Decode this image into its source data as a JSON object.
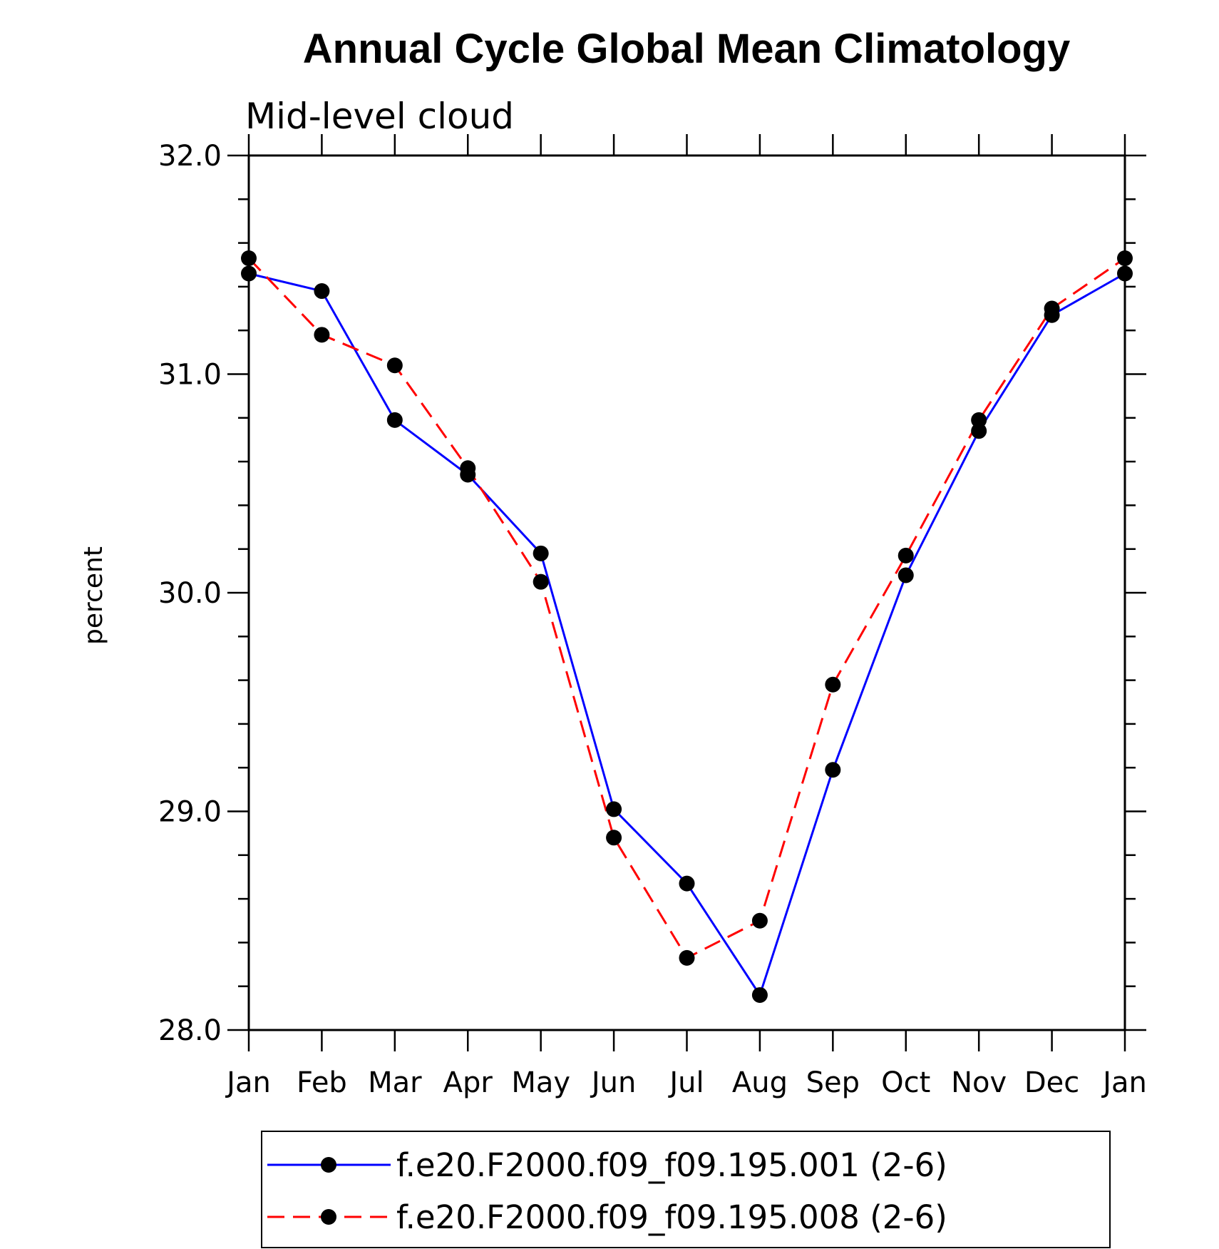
{
  "chart_data": {
    "type": "line",
    "title": "Annual Cycle Global Mean Climatology",
    "subtitle": "Mid-level cloud",
    "xlabel": "",
    "ylabel": "percent",
    "categories": [
      "Jan",
      "Feb",
      "Mar",
      "Apr",
      "May",
      "Jun",
      "Jul",
      "Aug",
      "Sep",
      "Oct",
      "Nov",
      "Dec",
      "Jan"
    ],
    "ylim": [
      28.0,
      32.0
    ],
    "yticks": [
      "28.0",
      "29.0",
      "30.0",
      "31.0",
      "32.0"
    ],
    "grid": false,
    "legend_position": "bottom",
    "series": [
      {
        "name": "f.e20.F2000.f09_f09.195.001 (2-6)",
        "color": "#0000ff",
        "line_style": "solid",
        "marker": "filled-circle",
        "values": [
          31.46,
          31.38,
          30.79,
          30.54,
          30.18,
          29.01,
          28.67,
          28.16,
          29.19,
          30.08,
          30.74,
          31.27,
          31.46
        ]
      },
      {
        "name": "f.e20.F2000.f09_f09.195.008 (2-6)",
        "color": "#ff0000",
        "line_style": "dashed",
        "marker": "filled-circle",
        "values": [
          31.53,
          31.18,
          31.04,
          30.57,
          30.05,
          28.88,
          28.33,
          28.5,
          29.58,
          30.17,
          30.79,
          31.3,
          31.53
        ]
      }
    ]
  }
}
